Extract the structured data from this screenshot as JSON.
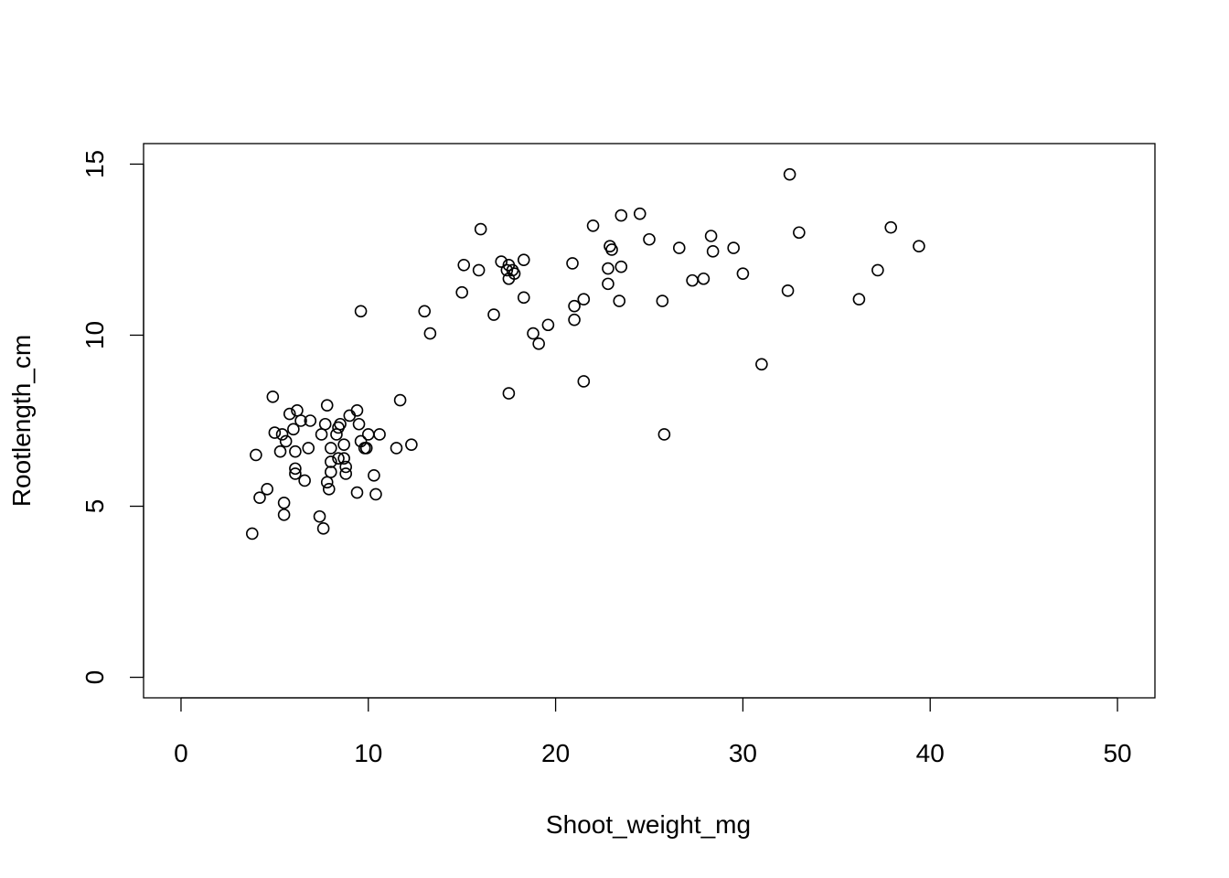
{
  "chart_data": {
    "type": "scatter",
    "title": "",
    "xlabel": "Shoot_weight_mg",
    "ylabel": "Rootlength_cm",
    "xlim": [
      -2,
      52
    ],
    "ylim": [
      -0.6,
      15.6
    ],
    "xticks": [
      0,
      10,
      20,
      30,
      40,
      50
    ],
    "yticks": [
      0,
      5,
      10,
      15
    ],
    "grid": false,
    "legend": "none",
    "marker": "open-circle",
    "colors": {
      "point": "#000000",
      "axis": "#000000",
      "background": "#ffffff"
    },
    "series": [
      {
        "points": [
          [
            3.8,
            4.2
          ],
          [
            4.0,
            6.5
          ],
          [
            4.2,
            5.25
          ],
          [
            4.6,
            5.5
          ],
          [
            4.9,
            8.2
          ],
          [
            5.0,
            7.15
          ],
          [
            5.3,
            6.6
          ],
          [
            5.4,
            7.1
          ],
          [
            5.5,
            5.1
          ],
          [
            5.5,
            4.75
          ],
          [
            5.6,
            6.9
          ],
          [
            5.8,
            7.7
          ],
          [
            6.0,
            7.25
          ],
          [
            6.1,
            6.6
          ],
          [
            6.1,
            6.1
          ],
          [
            6.1,
            5.95
          ],
          [
            6.2,
            7.8
          ],
          [
            6.4,
            7.5
          ],
          [
            6.6,
            5.75
          ],
          [
            6.8,
            6.7
          ],
          [
            6.9,
            7.5
          ],
          [
            7.4,
            4.7
          ],
          [
            7.5,
            7.1
          ],
          [
            7.6,
            4.35
          ],
          [
            7.7,
            7.4
          ],
          [
            7.8,
            7.95
          ],
          [
            7.8,
            5.7
          ],
          [
            7.9,
            5.5
          ],
          [
            8.0,
            6.3
          ],
          [
            8.0,
            6.0
          ],
          [
            8.0,
            6.7
          ],
          [
            8.3,
            7.1
          ],
          [
            8.4,
            7.3
          ],
          [
            8.4,
            6.4
          ],
          [
            8.5,
            7.4
          ],
          [
            8.7,
            6.8
          ],
          [
            8.7,
            6.4
          ],
          [
            8.8,
            6.15
          ],
          [
            8.8,
            5.95
          ],
          [
            9.0,
            7.65
          ],
          [
            9.4,
            7.8
          ],
          [
            9.4,
            5.4
          ],
          [
            9.5,
            7.4
          ],
          [
            9.6,
            6.9
          ],
          [
            9.6,
            10.7
          ],
          [
            9.8,
            6.7
          ],
          [
            9.9,
            6.7
          ],
          [
            10.0,
            7.1
          ],
          [
            10.3,
            5.9
          ],
          [
            10.4,
            5.35
          ],
          [
            10.6,
            7.1
          ],
          [
            11.5,
            6.7
          ],
          [
            11.7,
            8.1
          ],
          [
            12.3,
            6.8
          ],
          [
            13.0,
            10.7
          ],
          [
            13.3,
            10.05
          ],
          [
            15.0,
            11.25
          ],
          [
            15.1,
            12.05
          ],
          [
            15.9,
            11.9
          ],
          [
            16.0,
            13.1
          ],
          [
            16.7,
            10.6
          ],
          [
            17.1,
            12.15
          ],
          [
            17.4,
            11.9
          ],
          [
            17.5,
            12.05
          ],
          [
            17.5,
            11.65
          ],
          [
            17.5,
            8.3
          ],
          [
            17.7,
            11.9
          ],
          [
            17.8,
            11.8
          ],
          [
            18.3,
            11.1
          ],
          [
            18.3,
            12.2
          ],
          [
            18.8,
            10.05
          ],
          [
            19.1,
            9.75
          ],
          [
            19.6,
            10.3
          ],
          [
            20.9,
            12.1
          ],
          [
            21.0,
            10.85
          ],
          [
            21.0,
            10.45
          ],
          [
            21.5,
            11.05
          ],
          [
            21.5,
            8.65
          ],
          [
            22.0,
            13.2
          ],
          [
            22.8,
            11.5
          ],
          [
            22.8,
            11.95
          ],
          [
            22.9,
            12.6
          ],
          [
            23.0,
            12.5
          ],
          [
            23.4,
            11.0
          ],
          [
            23.5,
            12.0
          ],
          [
            23.5,
            13.5
          ],
          [
            24.5,
            13.55
          ],
          [
            25.0,
            12.8
          ],
          [
            25.7,
            11.0
          ],
          [
            25.8,
            7.1
          ],
          [
            26.6,
            12.55
          ],
          [
            27.3,
            11.6
          ],
          [
            27.9,
            11.65
          ],
          [
            28.3,
            12.9
          ],
          [
            28.4,
            12.45
          ],
          [
            29.5,
            12.55
          ],
          [
            30.0,
            11.8
          ],
          [
            31.0,
            9.15
          ],
          [
            32.4,
            11.3
          ],
          [
            32.5,
            14.7
          ],
          [
            33.0,
            13.0
          ],
          [
            36.2,
            11.05
          ],
          [
            37.2,
            11.9
          ],
          [
            37.9,
            13.15
          ],
          [
            39.4,
            12.6
          ]
        ]
      }
    ]
  }
}
